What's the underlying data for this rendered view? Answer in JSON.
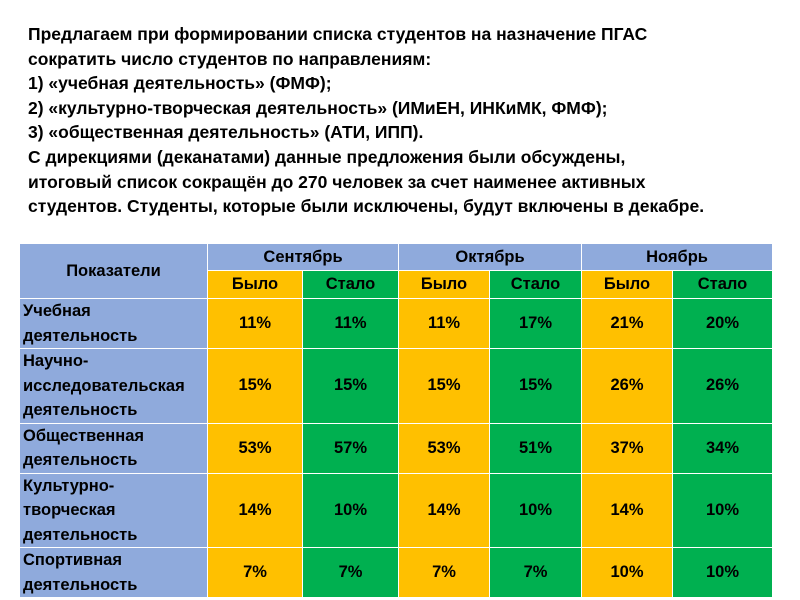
{
  "intro": {
    "lines": [
      "Предлагаем при формировании списка студентов на назначение ПГАС",
      "сократить число студентов по направлениям:",
      "1) «учебная деятельность» (ФМФ);",
      "2) «культурно-творческая деятельность» (ИМиЕН, ИНКиМК, ФМФ);",
      "3) «общественная деятельность» (АТИ, ИПП).",
      "С дирекциями (деканатами) данные предложения были обсуждены,",
      "итоговый список сокращён до 270 человек за счет наименее активных",
      "студентов. Студенты, которые были исключены, будут включены в декабре."
    ]
  },
  "table": {
    "metric_header": "Показатели",
    "months": [
      "Сентябрь",
      "Октябрь",
      "Ноябрь"
    ],
    "was_label": "Было",
    "now_label": "Стало",
    "rows": [
      {
        "label_lines": [
          "Учебная",
          "деятельность"
        ],
        "values": [
          "11%",
          "11%",
          "11%",
          "17%",
          "21%",
          "20%"
        ]
      },
      {
        "label_lines": [
          "Научно-",
          "исследовательская",
          "деятельность"
        ],
        "values": [
          "15%",
          "15%",
          "15%",
          "15%",
          "26%",
          "26%"
        ]
      },
      {
        "label_lines": [
          "Общественная",
          "деятельность"
        ],
        "values": [
          "53%",
          "57%",
          "53%",
          "51%",
          "37%",
          "34%"
        ]
      },
      {
        "label_lines": [
          "Культурно-",
          "творческая",
          "деятельность"
        ],
        "values": [
          "14%",
          "10%",
          "14%",
          "10%",
          "14%",
          "10%"
        ]
      },
      {
        "label_lines": [
          "Спортивная",
          "деятельность"
        ],
        "values": [
          "7%",
          "7%",
          "7%",
          "7%",
          "10%",
          "10%"
        ]
      }
    ]
  },
  "colors": {
    "header_blue": "#8faadc",
    "was_yellow": "#ffc000",
    "now_green": "#00b050"
  }
}
